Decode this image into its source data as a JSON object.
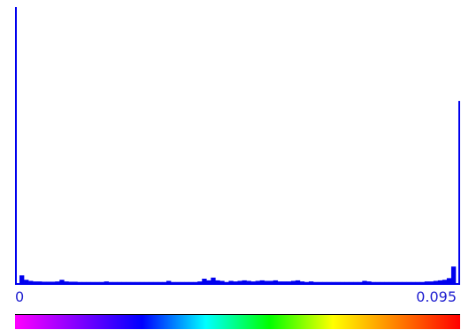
{
  "histogram": {
    "range_min_label": "0",
    "range_max_label": "0.095"
  },
  "colors": {
    "bars": "#0000ee",
    "colorbar_stops": [
      "#ff00ff",
      "#8000ff",
      "#0000ff",
      "#00ffff",
      "#00ff00",
      "#ffff00",
      "#ff8000",
      "#ff0000"
    ]
  },
  "chart_data": {
    "type": "bar",
    "xlim": [
      0,
      0.095
    ],
    "ylim": [
      0,
      1
    ],
    "grid": false,
    "legend": "none",
    "bins": 100,
    "values": [
      1.0,
      0.028,
      0.012,
      0.008,
      0.006,
      0.006,
      0.005,
      0.005,
      0.005,
      0.006,
      0.012,
      0.006,
      0.005,
      0.005,
      0.004,
      0.004,
      0.004,
      0.004,
      0.004,
      0.004,
      0.006,
      0.004,
      0.004,
      0.004,
      0.004,
      0.004,
      0.004,
      0.004,
      0.004,
      0.004,
      0.004,
      0.004,
      0.004,
      0.004,
      0.008,
      0.004,
      0.004,
      0.004,
      0.004,
      0.004,
      0.004,
      0.006,
      0.016,
      0.01,
      0.02,
      0.01,
      0.008,
      0.004,
      0.008,
      0.006,
      0.008,
      0.01,
      0.008,
      0.006,
      0.008,
      0.01,
      0.008,
      0.008,
      0.01,
      0.006,
      0.006,
      0.006,
      0.008,
      0.01,
      0.006,
      0.004,
      0.006,
      0.004,
      0.004,
      0.004,
      0.004,
      0.004,
      0.004,
      0.004,
      0.004,
      0.004,
      0.004,
      0.004,
      0.008,
      0.006,
      0.004,
      0.004,
      0.004,
      0.004,
      0.004,
      0.004,
      0.004,
      0.004,
      0.004,
      0.004,
      0.004,
      0.004,
      0.006,
      0.006,
      0.008,
      0.01,
      0.012,
      0.018,
      0.06,
      0.66
    ]
  }
}
